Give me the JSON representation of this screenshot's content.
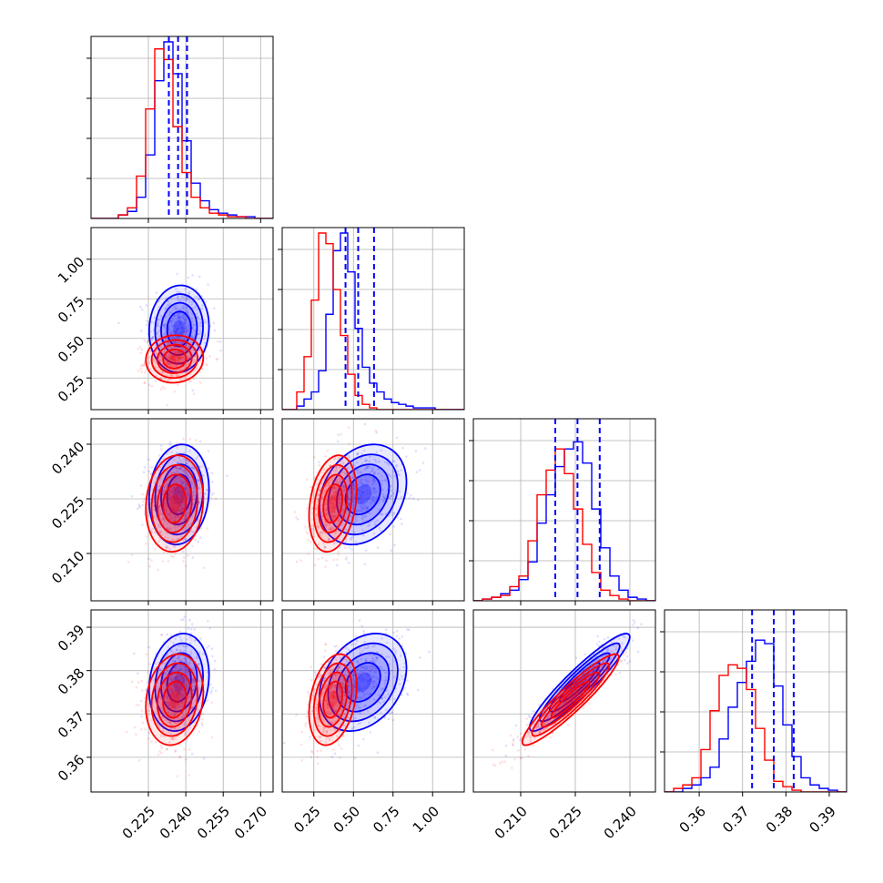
{
  "chart_data": {
    "type": "scatter",
    "colors": {
      "series_a": "#0000ff",
      "series_b": "#ff0000"
    },
    "grid": true,
    "panels": [
      {
        "row": 0,
        "col": 0,
        "kind": "hist",
        "var": 0
      },
      {
        "row": 1,
        "col": 0,
        "kind": "scatter2d",
        "xvar": 0,
        "yvar": 1
      },
      {
        "row": 1,
        "col": 1,
        "kind": "hist",
        "var": 1
      },
      {
        "row": 2,
        "col": 0,
        "kind": "scatter2d",
        "xvar": 0,
        "yvar": 2
      },
      {
        "row": 2,
        "col": 1,
        "kind": "scatter2d",
        "xvar": 1,
        "yvar": 2
      },
      {
        "row": 2,
        "col": 2,
        "kind": "hist",
        "var": 2
      },
      {
        "row": 3,
        "col": 0,
        "kind": "scatter2d",
        "xvar": 0,
        "yvar": 3
      },
      {
        "row": 3,
        "col": 1,
        "kind": "scatter2d",
        "xvar": 1,
        "yvar": 3
      },
      {
        "row": 3,
        "col": 2,
        "kind": "scatter2d",
        "xvar": 2,
        "yvar": 3
      },
      {
        "row": 3,
        "col": 3,
        "kind": "hist",
        "var": 3
      }
    ],
    "variables": [
      {
        "range": [
          0.202,
          0.275
        ],
        "ticks": [
          0.225,
          0.24,
          0.255,
          0.27
        ],
        "tick_labels": [
          "0.225",
          "0.240",
          "0.255",
          "0.270"
        ],
        "quantiles_blue": [
          0.2332,
          0.2369,
          0.2405
        ],
        "blue": {
          "mean": 0.2373,
          "sd": 0.0048
        },
        "red": {
          "mean": 0.2355,
          "sd": 0.0046
        },
        "hist_blue": [
          0,
          0,
          0,
          0.02,
          0.04,
          0.12,
          0.36,
          0.78,
          1.0,
          0.82,
          0.44,
          0.2,
          0.1,
          0.05,
          0.03,
          0.02,
          0.01,
          0.01,
          0,
          0
        ],
        "hist_red": [
          0,
          0,
          0,
          0.02,
          0.06,
          0.24,
          0.62,
          0.96,
          0.9,
          0.52,
          0.26,
          0.12,
          0.06,
          0.03,
          0.02,
          0.01,
          0.01,
          0,
          0,
          0
        ]
      },
      {
        "range": [
          0.05,
          1.2
        ],
        "ticks": [
          0.25,
          0.5,
          0.75,
          1.0
        ],
        "tick_labels": [
          "0.25",
          "0.50",
          "0.75",
          "1.00"
        ],
        "quantiles_blue": [
          0.45,
          0.53,
          0.63
        ],
        "blue": {
          "mean": 0.56,
          "sd": 0.11
        },
        "red": {
          "mean": 0.37,
          "sd": 0.06
        },
        "hist_blue": [
          0,
          0,
          0.02,
          0.06,
          0.1,
          0.22,
          0.54,
          0.9,
          1.0,
          0.78,
          0.46,
          0.24,
          0.15,
          0.1,
          0.06,
          0.04,
          0.03,
          0.02,
          0.01,
          0.01,
          0.01,
          0,
          0,
          0,
          0
        ],
        "hist_red": [
          0,
          0,
          0.1,
          0.3,
          0.62,
          1.0,
          0.94,
          0.68,
          0.42,
          0.2,
          0.08,
          0.03,
          0.01,
          0,
          0,
          0,
          0,
          0,
          0,
          0,
          0,
          0,
          0,
          0,
          0
        ]
      },
      {
        "range": [
          0.197,
          0.247
        ],
        "ticks": [
          0.21,
          0.225,
          0.24
        ],
        "tick_labels": [
          "0.210",
          "0.225",
          "0.240"
        ],
        "quantiles_blue": [
          0.2195,
          0.2256,
          0.2317
        ],
        "blue": {
          "mean": 0.2262,
          "sd": 0.0055
        },
        "red": {
          "mean": 0.2237,
          "sd": 0.0053
        },
        "hist_blue": [
          0,
          0.01,
          0.02,
          0.04,
          0.06,
          0.12,
          0.22,
          0.44,
          0.6,
          0.76,
          0.86,
          0.9,
          0.78,
          0.52,
          0.3,
          0.14,
          0.06,
          0.02,
          0.01,
          0
        ],
        "hist_red": [
          0,
          0.01,
          0.02,
          0.03,
          0.08,
          0.14,
          0.34,
          0.6,
          0.74,
          0.86,
          0.72,
          0.52,
          0.32,
          0.16,
          0.06,
          0.03,
          0.01,
          0,
          0,
          0
        ]
      },
      {
        "range": [
          0.352,
          0.394
        ],
        "ticks": [
          0.36,
          0.37,
          0.38,
          0.39
        ],
        "tick_labels": [
          "0.36",
          "0.37",
          "0.38",
          "0.39"
        ],
        "quantiles_blue": [
          0.3722,
          0.3772,
          0.3818
        ],
        "blue": {
          "mean": 0.3773,
          "sd": 0.0045
        },
        "red": {
          "mean": 0.3733,
          "sd": 0.0042
        },
        "hist_blue": [
          0,
          0,
          0.02,
          0.04,
          0.08,
          0.14,
          0.3,
          0.48,
          0.62,
          0.74,
          0.86,
          0.84,
          0.6,
          0.38,
          0.2,
          0.08,
          0.04,
          0.02,
          0.01,
          0
        ],
        "hist_red": [
          0,
          0.02,
          0.04,
          0.08,
          0.24,
          0.46,
          0.66,
          0.72,
          0.7,
          0.58,
          0.36,
          0.18,
          0.06,
          0.03,
          0.01,
          0,
          0,
          0,
          0,
          0
        ]
      }
    ],
    "correlations": {
      "0-1": 0.05,
      "0-2": 0.1,
      "1-2": 0.25,
      "0-3": 0.15,
      "1-3": 0.3,
      "2-3": 0.93
    }
  }
}
